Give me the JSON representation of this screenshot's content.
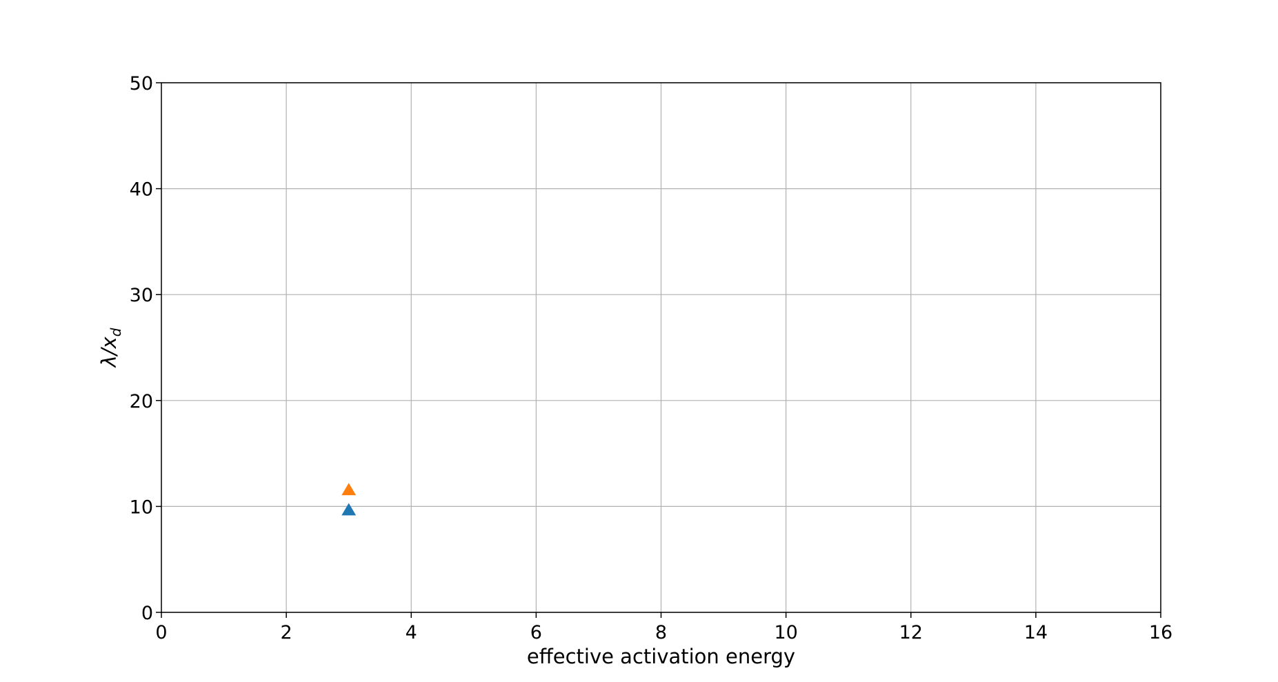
{
  "chart_data": {
    "type": "scatter",
    "title": "",
    "xlabel": "effective activation energy",
    "ylabel_main": "λ/x",
    "ylabel_sub": "d",
    "xlim": [
      0,
      16
    ],
    "ylim": [
      0,
      50
    ],
    "xticks": [
      0,
      2,
      4,
      6,
      8,
      10,
      12,
      14,
      16
    ],
    "yticks": [
      0,
      10,
      20,
      30,
      40,
      50
    ],
    "grid": true,
    "marker": "triangle-up",
    "series": [
      {
        "color": "#1f77b4",
        "points": [
          {
            "x": 3.0,
            "y": 9.6
          }
        ]
      },
      {
        "color": "#ff7f0e",
        "points": [
          {
            "x": 3.0,
            "y": 11.5
          }
        ]
      }
    ]
  }
}
